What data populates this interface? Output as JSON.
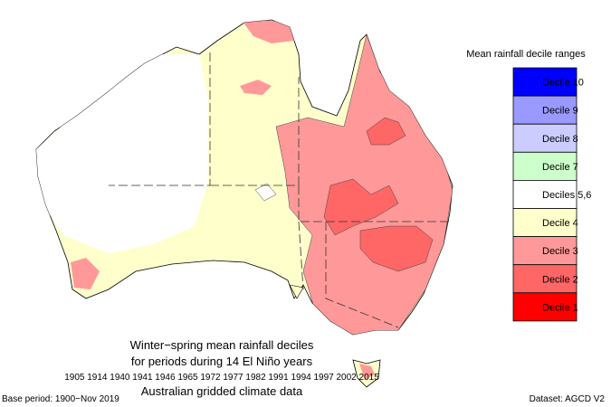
{
  "title_lines": [
    "Winter−spring mean rainfall deciles",
    "for periods during 14 El Niño years",
    "1905 1914 1940 1941 1946 1965 1972 1977 1982 1991 1994 1997 2002 2015",
    "Australian gridded climate data"
  ],
  "base_period": "Base period: 1900−Nov 2019",
  "dataset": "Dataset: AGCD V2",
  "legend": {
    "title": "Mean rainfall decile ranges",
    "items": [
      {
        "label": "Decile 10",
        "color": "#0000ff"
      },
      {
        "label": "Decile 9",
        "color": "#9999ff"
      },
      {
        "label": "Decile 8",
        "color": "#ccccff"
      },
      {
        "label": "Decile 7",
        "color": "#ccffcc"
      },
      {
        "label": "Deciles 5,6",
        "color": "#ffffff"
      },
      {
        "label": "Decile 4",
        "color": "#ffffcc"
      },
      {
        "label": "Decile 3",
        "color": "#ff9999"
      },
      {
        "label": "Decile 2",
        "color": "#ff6666"
      },
      {
        "label": "Decile 1",
        "color": "#ff0000"
      }
    ]
  }
}
